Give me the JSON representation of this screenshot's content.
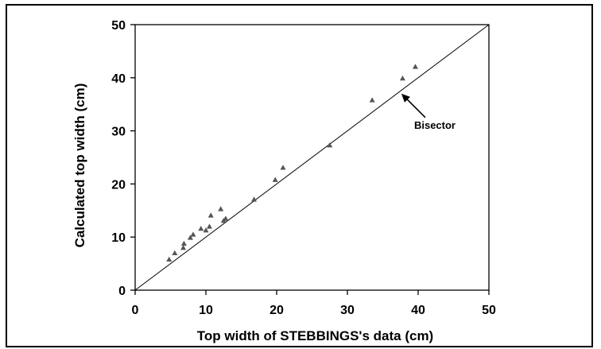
{
  "chart_data": {
    "type": "scatter",
    "xlabel": "Top width of STEBBINGS's data (cm)",
    "ylabel": "Calculated top width (cm)",
    "xlim": [
      0,
      50
    ],
    "ylim": [
      0,
      50
    ],
    "xticks": [
      "0",
      "10",
      "20",
      "30",
      "40",
      "50"
    ],
    "yticks": [
      "0",
      "10",
      "20",
      "30",
      "40",
      "50"
    ],
    "grid": false,
    "legend": "none",
    "marker_color": "#555555",
    "series": [
      {
        "marker": "triangle",
        "points": [
          {
            "x": 4.8,
            "y": 5.8
          },
          {
            "x": 5.6,
            "y": 7.0
          },
          {
            "x": 6.8,
            "y": 8.0
          },
          {
            "x": 6.9,
            "y": 8.8
          },
          {
            "x": 7.8,
            "y": 9.9
          },
          {
            "x": 8.2,
            "y": 10.5
          },
          {
            "x": 9.3,
            "y": 11.6
          },
          {
            "x": 10.0,
            "y": 11.3
          },
          {
            "x": 10.5,
            "y": 12.0
          },
          {
            "x": 10.7,
            "y": 14.1
          },
          {
            "x": 12.1,
            "y": 15.3
          },
          {
            "x": 12.5,
            "y": 13.1
          },
          {
            "x": 12.8,
            "y": 13.5
          },
          {
            "x": 16.8,
            "y": 17.1
          },
          {
            "x": 19.8,
            "y": 20.8
          },
          {
            "x": 20.9,
            "y": 23.1
          },
          {
            "x": 27.5,
            "y": 27.3
          },
          {
            "x": 33.5,
            "y": 35.8
          },
          {
            "x": 37.8,
            "y": 39.9
          },
          {
            "x": 39.6,
            "y": 42.1
          }
        ]
      }
    ],
    "reference_line": {
      "label": "Bisector",
      "from": [
        0,
        0
      ],
      "to": [
        50,
        50
      ]
    },
    "annotations": [
      {
        "text": "Bisector",
        "points_to": [
          37.3,
          37.3
        ]
      }
    ]
  }
}
